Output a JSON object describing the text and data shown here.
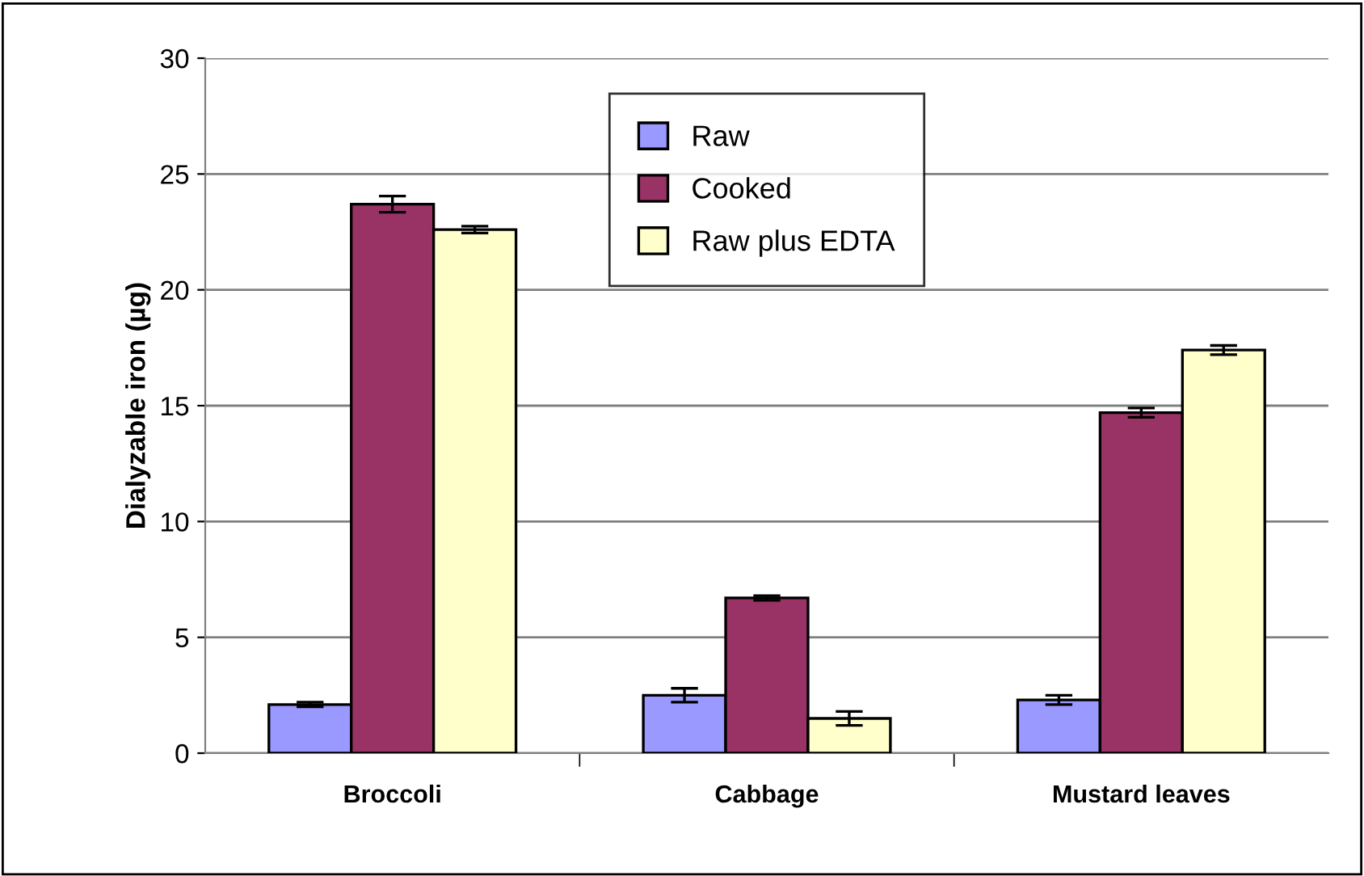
{
  "chart_data": {
    "type": "bar",
    "ylabel": "Dialyzable iron (µg)",
    "categories": [
      "Broccoli",
      "Cabbage",
      "Mustard leaves"
    ],
    "series": [
      {
        "name": "Raw",
        "color": "#9999ff",
        "values": [
          2.1,
          2.5,
          2.3
        ],
        "errors": [
          0.1,
          0.3,
          0.2
        ]
      },
      {
        "name": "Cooked",
        "color": "#993366",
        "values": [
          23.7,
          6.7,
          14.7
        ],
        "errors": [
          0.35,
          0.1,
          0.2
        ]
      },
      {
        "name": "Raw plus EDTA",
        "color": "#ffffcc",
        "values": [
          22.6,
          1.5,
          17.4
        ],
        "errors": [
          0.15,
          0.3,
          0.2
        ]
      }
    ],
    "ylim": [
      0,
      30
    ],
    "yticks": [
      0,
      5,
      10,
      15,
      20,
      25,
      30
    ],
    "grid": "y",
    "legend": "top"
  }
}
